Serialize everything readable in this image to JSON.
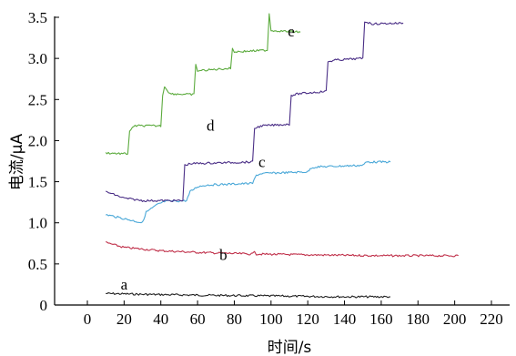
{
  "chart_data": {
    "type": "line",
    "title": "",
    "xlabel": "时间/s",
    "ylabel": "电流/μA",
    "xlim": [
      -5,
      230
    ],
    "ylim": [
      0,
      3.5
    ],
    "xticks": [
      0,
      20,
      40,
      60,
      80,
      100,
      120,
      140,
      160,
      180,
      200,
      220
    ],
    "yticks": [
      0,
      0.5,
      1.0,
      1.5,
      2.0,
      2.5,
      3.0,
      3.5
    ],
    "xtick_labels": [
      "0",
      "20",
      "40",
      "60",
      "80",
      "100",
      "120",
      "140",
      "160",
      "180",
      "200",
      "220"
    ],
    "ytick_labels": [
      "0",
      "0.5",
      "1.0",
      "1.5",
      "2.0",
      "2.5",
      "3.0",
      "3.5"
    ],
    "grid": false,
    "series": [
      {
        "name": "a",
        "color": "#222222",
        "label_at": [
          20,
          0.19
        ],
        "points": [
          [
            10,
            0.14
          ],
          [
            30,
            0.13
          ],
          [
            60,
            0.12
          ],
          [
            100,
            0.11
          ],
          [
            140,
            0.1
          ],
          [
            165,
            0.1
          ]
        ]
      },
      {
        "name": "b",
        "color": "#c0304a",
        "label_at": [
          74,
          0.55
        ],
        "points": [
          [
            10,
            0.76
          ],
          [
            20,
            0.7
          ],
          [
            40,
            0.66
          ],
          [
            60,
            0.64
          ],
          [
            90,
            0.62
          ],
          [
            91,
            0.66
          ],
          [
            92,
            0.62
          ],
          [
            120,
            0.61
          ],
          [
            160,
            0.6
          ],
          [
            202,
            0.6
          ]
        ]
      },
      {
        "name": "c",
        "color": "#4aa8d8",
        "label_at": [
          95,
          1.68
        ],
        "points": [
          [
            10,
            1.1
          ],
          [
            20,
            1.05
          ],
          [
            30,
            1.0
          ],
          [
            32,
            1.13
          ],
          [
            38,
            1.22
          ],
          [
            42,
            1.26
          ],
          [
            54,
            1.27
          ],
          [
            56,
            1.38
          ],
          [
            60,
            1.44
          ],
          [
            65,
            1.46
          ],
          [
            90,
            1.48
          ],
          [
            92,
            1.58
          ],
          [
            95,
            1.6
          ],
          [
            120,
            1.62
          ],
          [
            122,
            1.67
          ],
          [
            125,
            1.68
          ],
          [
            150,
            1.7
          ],
          [
            152,
            1.74
          ],
          [
            165,
            1.74
          ]
        ]
      },
      {
        "name": "d",
        "color": "#4a2e86",
        "label_at": [
          67,
          2.12
        ],
        "points": [
          [
            10,
            1.38
          ],
          [
            20,
            1.3
          ],
          [
            30,
            1.27
          ],
          [
            40,
            1.27
          ],
          [
            52,
            1.27
          ],
          [
            53,
            1.7
          ],
          [
            56,
            1.72
          ],
          [
            90,
            1.74
          ],
          [
            91,
            2.15
          ],
          [
            95,
            2.18
          ],
          [
            110,
            2.2
          ],
          [
            111,
            2.55
          ],
          [
            115,
            2.57
          ],
          [
            130,
            2.6
          ],
          [
            131,
            2.96
          ],
          [
            135,
            2.98
          ],
          [
            150,
            3.0
          ],
          [
            151,
            3.45
          ],
          [
            155,
            3.42
          ],
          [
            172,
            3.43
          ]
        ]
      },
      {
        "name": "e",
        "color": "#5cab3e",
        "label_at": [
          111,
          3.27
        ],
        "points": [
          [
            10,
            1.85
          ],
          [
            20,
            1.84
          ],
          [
            22,
            1.84
          ],
          [
            23,
            2.12
          ],
          [
            26,
            2.18
          ],
          [
            40,
            2.18
          ],
          [
            41,
            2.55
          ],
          [
            42,
            2.66
          ],
          [
            45,
            2.57
          ],
          [
            58,
            2.56
          ],
          [
            59,
            2.92
          ],
          [
            60,
            2.85
          ],
          [
            78,
            2.88
          ],
          [
            79,
            3.12
          ],
          [
            80,
            3.08
          ],
          [
            98,
            3.1
          ],
          [
            99,
            3.55
          ],
          [
            100,
            3.34
          ],
          [
            116,
            3.32
          ]
        ]
      }
    ]
  }
}
